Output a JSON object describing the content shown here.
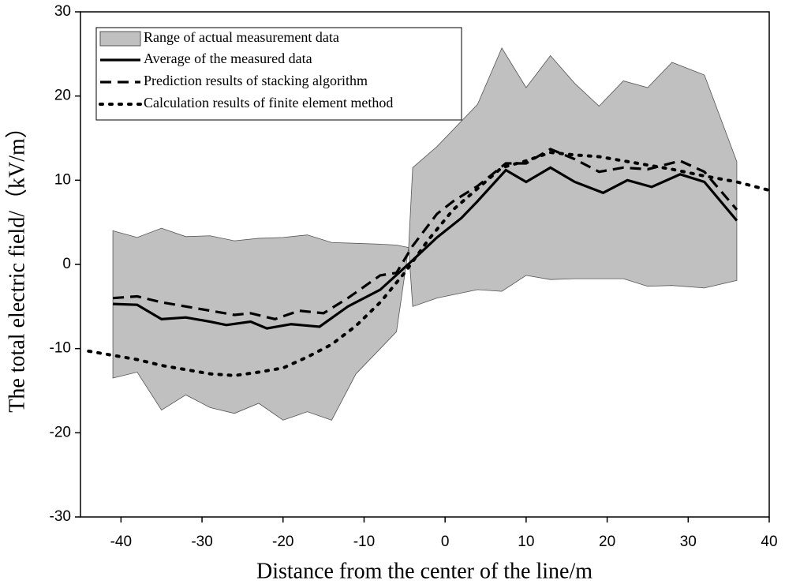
{
  "chart_data": {
    "type": "line",
    "x_label": "Distance from the center of the line/m",
    "y_label": "The total electric field/（kV/m）",
    "xlim": [
      -45,
      40
    ],
    "xticks": [
      -40,
      -30,
      -20,
      -10,
      0,
      10,
      20,
      30,
      40
    ],
    "ylim": [
      -30,
      30
    ],
    "yticks": [
      -30,
      -20,
      -10,
      0,
      10,
      20,
      30
    ],
    "legend": "upper left",
    "range": {
      "name": "Range of actual measurement data",
      "color": "#c0c0c0",
      "x": [
        -41,
        -38,
        -35,
        -32,
        -29,
        -26,
        -23,
        -20,
        -17,
        -14,
        -11,
        -8,
        -6,
        -4.5,
        -4,
        -1,
        4,
        7,
        10,
        13,
        16,
        19,
        22,
        25,
        28,
        32,
        36
      ],
      "upper": [
        4,
        3.2,
        4.3,
        3.3,
        3.4,
        2.8,
        3.1,
        3.2,
        3.5,
        2.6,
        2.5,
        2.4,
        2.3,
        2,
        11.5,
        14,
        19,
        25.7,
        21,
        24.8,
        21.5,
        18.8,
        21.8,
        21,
        24,
        22.5,
        12.2
      ],
      "lower": [
        -13.5,
        -12.8,
        -17.3,
        -15.5,
        -17,
        -17.7,
        -16.5,
        -18.5,
        -17.5,
        -18.5,
        -13,
        -10,
        -8,
        2,
        -5,
        -4,
        -3,
        -3.2,
        -1.3,
        -1.8,
        -1.7,
        -1.7,
        -1.7,
        -2.6,
        -2.5,
        -2.8,
        -1.9
      ]
    },
    "series": [
      {
        "name": "Average of the measured data",
        "color": "#000000",
        "style": "solid",
        "x": [
          -41,
          -38,
          -35,
          -32,
          -29,
          -27,
          -24,
          -22,
          -19,
          -15.5,
          -12,
          -8,
          -4,
          -1,
          2,
          4,
          7.5,
          10,
          13,
          16,
          19.5,
          22.5,
          25.5,
          29,
          32,
          36
        ],
        "values": [
          -4.7,
          -4.8,
          -6.5,
          -6.3,
          -6.8,
          -7.2,
          -6.8,
          -7.6,
          -7.1,
          -7.4,
          -5,
          -3,
          0.5,
          3.2,
          5.5,
          7.5,
          11.2,
          9.8,
          11.5,
          9.8,
          8.5,
          10,
          9.2,
          10.7,
          9.8,
          5.2
        ]
      },
      {
        "name": "Prediction results of stacking algorithm",
        "color": "#000000",
        "style": "dashed",
        "x": [
          -41,
          -38,
          -35,
          -32,
          -29,
          -26,
          -24,
          -21,
          -18,
          -15,
          -12,
          -8,
          -6,
          -4,
          -1,
          1,
          4,
          7.5,
          10,
          13,
          16,
          19,
          22,
          25,
          29,
          32,
          36
        ],
        "values": [
          -4,
          -3.8,
          -4.5,
          -5,
          -5.5,
          -6,
          -5.8,
          -6.5,
          -5.5,
          -5.8,
          -4,
          -1.3,
          -1,
          2.2,
          6,
          7.5,
          9.3,
          12,
          12,
          13.7,
          12.5,
          11,
          11.5,
          11.3,
          12.3,
          11,
          6.5
        ]
      },
      {
        "name": "Calculation results of finite element method",
        "color": "#000000",
        "style": "dotted",
        "x": [
          -44,
          -41,
          -38,
          -35,
          -32,
          -29,
          -26,
          -23,
          -20,
          -17,
          -14,
          -11,
          -8,
          -5,
          -2,
          1,
          4,
          7,
          10,
          13,
          16,
          19,
          22,
          25,
          28,
          32,
          36,
          40
        ],
        "values": [
          -10.3,
          -10.8,
          -11.3,
          -12,
          -12.5,
          -13,
          -13.2,
          -12.8,
          -12.3,
          -11,
          -9.5,
          -7.3,
          -4.5,
          -1,
          3,
          6.5,
          9,
          11.5,
          12.3,
          13.3,
          13,
          12.8,
          12.3,
          11.8,
          11.3,
          10.5,
          9.8,
          8.8
        ]
      }
    ]
  }
}
